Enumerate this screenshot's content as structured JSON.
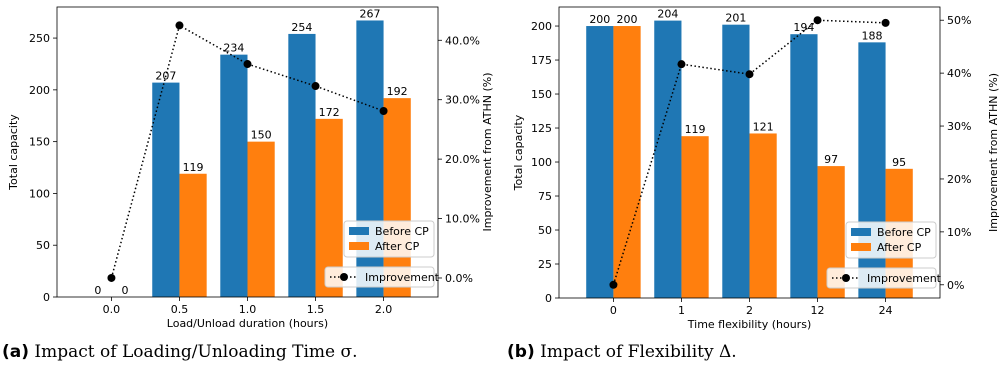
{
  "chart_data": [
    {
      "type": "bar",
      "x_label": "Load/Unload duration (hours)",
      "y_label": "Total capacity",
      "y2_label": "Improvement from ATHN (%)",
      "categories": [
        "0.0",
        "0.5",
        "1.0",
        "1.5",
        "2.0"
      ],
      "y_ticks": [
        "0",
        "50",
        "100",
        "150",
        "200",
        "250"
      ],
      "y_lim": [
        0,
        280
      ],
      "y2_ticks": [
        "0.0%",
        "10.0%",
        "20.0%",
        "30.0%",
        "40.0%"
      ],
      "y2_lim": [
        -3.2,
        45.6
      ],
      "series": [
        {
          "name": "Before CP",
          "color": "#1f77b4",
          "values": [
            0,
            207,
            234,
            254,
            267
          ]
        },
        {
          "name": "After CP",
          "color": "#ff7f0e",
          "values": [
            0,
            119,
            150,
            172,
            192
          ]
        }
      ],
      "improvement": {
        "name": "Improvement",
        "values": [
          0,
          42.5,
          36.0,
          32.3,
          28.1
        ]
      },
      "legend_position": "bottom-right",
      "grid": false
    },
    {
      "type": "bar",
      "x_label": "Time flexibility (hours)",
      "y_label": "Total capacity",
      "y2_label": "Improvement from ATHN (%)",
      "categories": [
        "0",
        "1",
        "2",
        "12",
        "24"
      ],
      "y_ticks": [
        "0",
        "25",
        "50",
        "75",
        "100",
        "125",
        "150",
        "175",
        "200"
      ],
      "y_lim": [
        0,
        214
      ],
      "y2_ticks": [
        "0%",
        "10%",
        "20%",
        "30%",
        "40%",
        "50%"
      ],
      "y2_lim": [
        -2.5,
        52.5
      ],
      "series": [
        {
          "name": "Before CP",
          "color": "#1f77b4",
          "values": [
            200,
            204,
            201,
            194,
            188
          ]
        },
        {
          "name": "After CP",
          "color": "#ff7f0e",
          "values": [
            200,
            119,
            121,
            97,
            95
          ]
        }
      ],
      "improvement": {
        "name": "Improvement",
        "values": [
          0,
          41.7,
          39.8,
          50.0,
          49.5
        ]
      },
      "legend_position": "bottom-right",
      "grid": false
    }
  ],
  "captions": {
    "a_label": "(a)",
    "a_text": "Impact of Loading/Unloading Time σ.",
    "b_label": "(b)",
    "b_text": "Impact of Flexibility Δ."
  }
}
